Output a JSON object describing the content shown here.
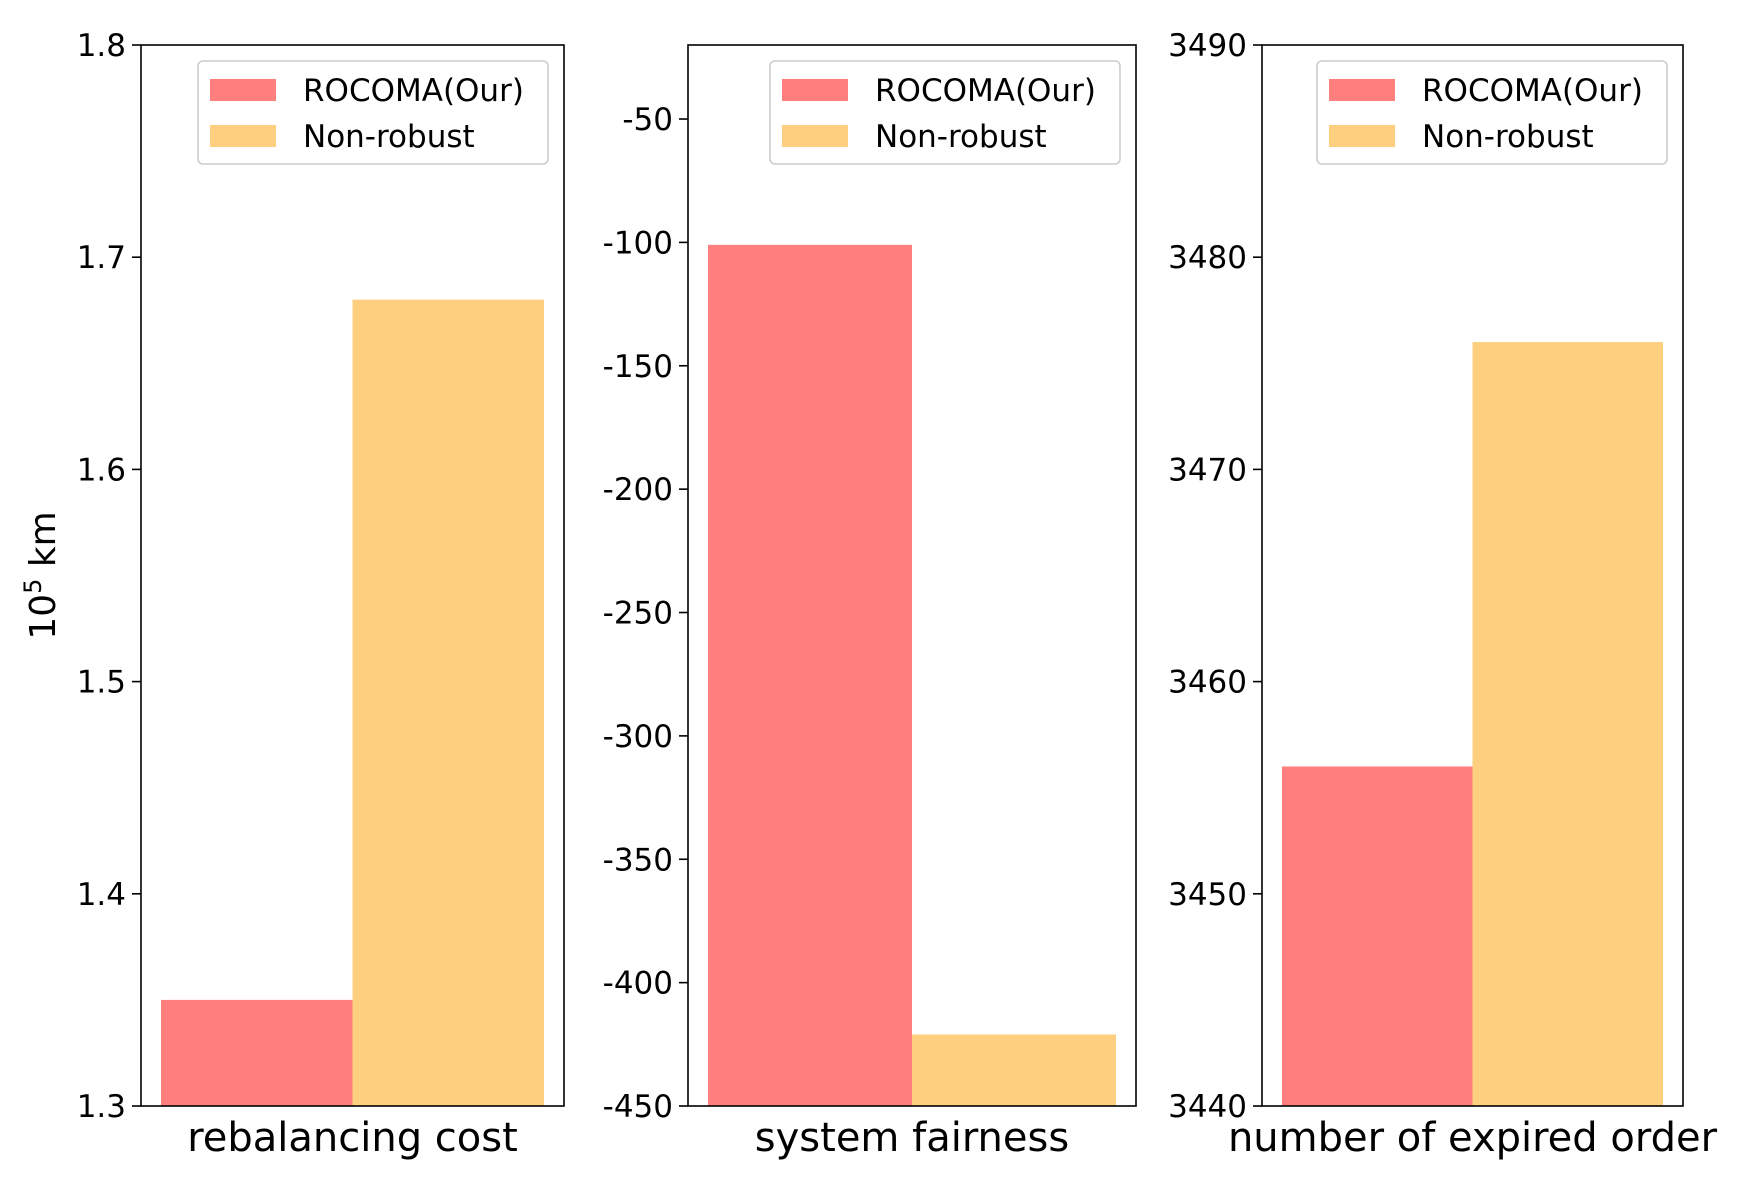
{
  "chart_data": [
    {
      "type": "bar",
      "xlabel": "rebalancing cost",
      "ylabel_base": "10",
      "ylabel_exp": "5",
      "ylabel_unit": " km",
      "ylim": [
        1.3,
        1.8
      ],
      "yticks": [
        "1.3",
        "1.4",
        "1.5",
        "1.6",
        "1.7",
        "1.8"
      ],
      "series": [
        {
          "name": "ROCOMA(Our)",
          "color": "#ff7f7f",
          "value": 1.35
        },
        {
          "name": "Non-robust",
          "color": "#fdcf7f",
          "value": 1.68
        }
      ],
      "legend_position": "upper right",
      "grid": false
    },
    {
      "type": "bar",
      "xlabel": "system fairness",
      "ylim": [
        -450,
        -20
      ],
      "yticks": [
        "-450",
        "-400",
        "-350",
        "-300",
        "-250",
        "-200",
        "-150",
        "-100",
        "-50"
      ],
      "series": [
        {
          "name": "ROCOMA(Our)",
          "color": "#ff7f7f",
          "value": -101
        },
        {
          "name": "Non-robust",
          "color": "#fdcf7f",
          "value": -421
        }
      ],
      "legend_position": "upper right",
      "grid": false
    },
    {
      "type": "bar",
      "xlabel": "number of expired order",
      "ylim": [
        3440,
        3490
      ],
      "yticks": [
        "3440",
        "3450",
        "3460",
        "3470",
        "3480",
        "3490"
      ],
      "series": [
        {
          "name": "ROCOMA(Our)",
          "color": "#ff7f7f",
          "value": 3456
        },
        {
          "name": "Non-robust",
          "color": "#fdcf7f",
          "value": 3476
        }
      ],
      "legend_position": "upper right",
      "grid": false
    }
  ]
}
